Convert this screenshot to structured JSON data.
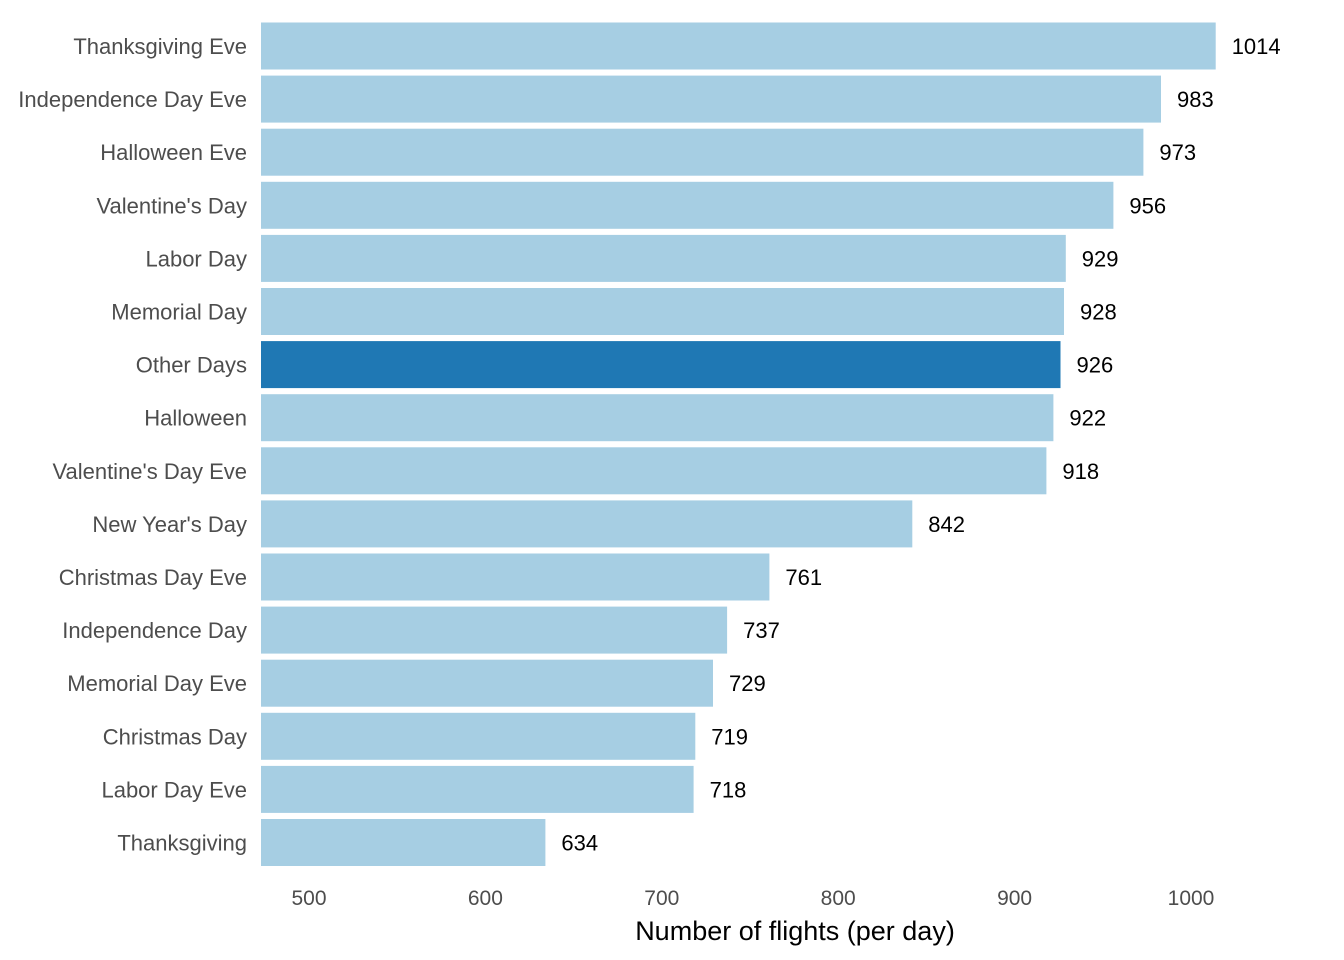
{
  "chart_data": {
    "type": "bar",
    "orientation": "horizontal",
    "categories": [
      "Thanksgiving Eve",
      "Independence Day Eve",
      "Halloween Eve",
      "Valentine's Day",
      "Labor Day",
      "Memorial Day",
      "Other Days",
      "Halloween",
      "Valentine's Day Eve",
      "New Year's Day",
      "Christmas Day Eve",
      "Independence Day",
      "Memorial Day Eve",
      "Christmas Day",
      "Labor Day Eve",
      "Thanksgiving"
    ],
    "values": [
      1014,
      983,
      973,
      956,
      929,
      928,
      926,
      922,
      918,
      842,
      761,
      737,
      729,
      719,
      718,
      634
    ],
    "highlight": "Other Days",
    "xlabel": "Number of flights (per day)",
    "ylabel": "",
    "xlim": [
      473,
      1025
    ],
    "xticks": [
      500,
      600,
      700,
      800,
      900,
      1000
    ],
    "grid": false,
    "colors": {
      "bar": "#a6cee3",
      "highlight": "#1f78b4"
    }
  }
}
